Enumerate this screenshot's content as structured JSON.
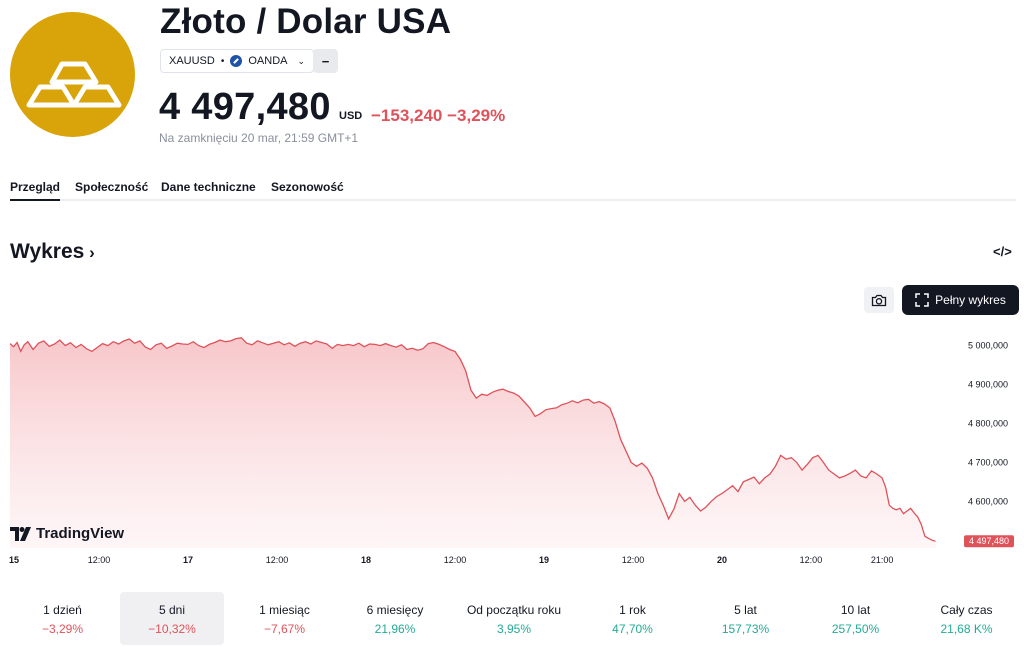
{
  "header": {
    "logo_icon": "gold-bars-icon",
    "title": "Złoto / Dolar USA",
    "symbol": "XAUUSD",
    "dot": "•",
    "exchange": "OANDA",
    "exchange_icon": "oanda-icon",
    "minus_label": "−",
    "price": "4 497,480",
    "currency": "USD",
    "change": "−153,240 −3,29%",
    "closed_text": "Na zamknięciu 20 mar, 21:59 GMT+1",
    "colors": {
      "logo_bg": "#d9a30a",
      "negative": "#e0525a",
      "positive": "#22ab94"
    }
  },
  "tabs": [
    {
      "label": "Przegląd",
      "active": true
    },
    {
      "label": "Społeczność",
      "active": false
    },
    {
      "label": "Dane techniczne",
      "active": false
    },
    {
      "label": "Sezonowość",
      "active": false
    }
  ],
  "chart_section": {
    "title": "Wykres",
    "title_icon": "chevron-right-icon",
    "embed_icon": "code-icon",
    "embed_label": "</>",
    "camera_icon": "camera-icon",
    "fullscreen_icon": "fullscreen-icon",
    "fullscreen_label": "Pełny wykres",
    "watermark": "TradingView"
  },
  "chart_data": {
    "type": "area",
    "title": "",
    "xlabel": "",
    "ylabel": "",
    "x_ticks": [
      {
        "label": "15",
        "x": 0,
        "day": true
      },
      {
        "label": "12:00",
        "x": 0.5,
        "day": false
      },
      {
        "label": "17",
        "x": 1.0,
        "day": true
      },
      {
        "label": "12:00",
        "x": 1.5,
        "day": false
      },
      {
        "label": "18",
        "x": 2.0,
        "day": true
      },
      {
        "label": "12:00",
        "x": 2.5,
        "day": false
      },
      {
        "label": "19",
        "x": 3.0,
        "day": true
      },
      {
        "label": "12:00",
        "x": 3.5,
        "day": false
      },
      {
        "label": "20",
        "x": 4.0,
        "day": true
      },
      {
        "label": "12:00",
        "x": 4.5,
        "day": false
      },
      {
        "label": "21:00",
        "x": 4.9,
        "day": false
      }
    ],
    "y_ticks": [
      {
        "label": "5 000,000",
        "value": 5000
      },
      {
        "label": "4 900,000",
        "value": 4900
      },
      {
        "label": "4 800,000",
        "value": 4800
      },
      {
        "label": "4 700,000",
        "value": 4700
      },
      {
        "label": "4 600,000",
        "value": 4600
      }
    ],
    "ylim": [
      4480,
      5040
    ],
    "xlim": [
      0,
      5.27
    ],
    "series": [
      {
        "values": [
          [
            0.0,
            5005
          ],
          [
            0.02,
            4997
          ],
          [
            0.04,
            5008
          ],
          [
            0.06,
            4985
          ],
          [
            0.08,
            5002
          ],
          [
            0.1,
            5010
          ],
          [
            0.13,
            4990
          ],
          [
            0.16,
            5006
          ],
          [
            0.19,
            5012
          ],
          [
            0.22,
            4998
          ],
          [
            0.25,
            5004
          ],
          [
            0.28,
            5014
          ],
          [
            0.31,
            5000
          ],
          [
            0.34,
            5007
          ],
          [
            0.37,
            4995
          ],
          [
            0.4,
            5003
          ],
          [
            0.43,
            4992
          ],
          [
            0.46,
            4985
          ],
          [
            0.49,
            4995
          ],
          [
            0.52,
            5005
          ],
          [
            0.55,
            5000
          ],
          [
            0.58,
            5010
          ],
          [
            0.61,
            5004
          ],
          [
            0.64,
            5012
          ],
          [
            0.67,
            5017
          ],
          [
            0.7,
            5006
          ],
          [
            0.73,
            5012
          ],
          [
            0.76,
            4996
          ],
          [
            0.79,
            4990
          ],
          [
            0.82,
            5002
          ],
          [
            0.85,
            5006
          ],
          [
            0.88,
            4993
          ],
          [
            0.91,
            4999
          ],
          [
            0.94,
            5006
          ],
          [
            0.97,
            5004
          ],
          [
            1.0,
            5003
          ],
          [
            1.03,
            5010
          ],
          [
            1.06,
            5000
          ],
          [
            1.09,
            4995
          ],
          [
            1.12,
            5003
          ],
          [
            1.15,
            5008
          ],
          [
            1.18,
            5014
          ],
          [
            1.21,
            5010
          ],
          [
            1.24,
            5012
          ],
          [
            1.27,
            5018
          ],
          [
            1.3,
            5020
          ],
          [
            1.33,
            5006
          ],
          [
            1.36,
            5002
          ],
          [
            1.39,
            5012
          ],
          [
            1.42,
            5007
          ],
          [
            1.45,
            5002
          ],
          [
            1.48,
            5006
          ],
          [
            1.51,
            5010
          ],
          [
            1.54,
            5002
          ],
          [
            1.57,
            5007
          ],
          [
            1.6,
            4998
          ],
          [
            1.63,
            5006
          ],
          [
            1.66,
            5010
          ],
          [
            1.69,
            5004
          ],
          [
            1.72,
            5012
          ],
          [
            1.75,
            5008
          ],
          [
            1.78,
            5004
          ],
          [
            1.81,
            4993
          ],
          [
            1.84,
            5003
          ],
          [
            1.87,
            5000
          ],
          [
            1.9,
            5003
          ],
          [
            1.93,
            5000
          ],
          [
            1.96,
            5006
          ],
          [
            1.99,
            4997
          ],
          [
            2.02,
            5004
          ],
          [
            2.05,
            5003
          ],
          [
            2.08,
            5000
          ],
          [
            2.11,
            5005
          ],
          [
            2.14,
            5000
          ],
          [
            2.17,
            4996
          ],
          [
            2.2,
            5002
          ],
          [
            2.23,
            4990
          ],
          [
            2.26,
            4993
          ],
          [
            2.29,
            4988
          ],
          [
            2.32,
            4992
          ],
          [
            2.35,
            5005
          ],
          [
            2.38,
            5008
          ],
          [
            2.41,
            5003
          ],
          [
            2.44,
            4997
          ],
          [
            2.47,
            4990
          ],
          [
            2.5,
            4985
          ],
          [
            2.53,
            4965
          ],
          [
            2.56,
            4935
          ],
          [
            2.59,
            4885
          ],
          [
            2.62,
            4865
          ],
          [
            2.65,
            4875
          ],
          [
            2.68,
            4872
          ],
          [
            2.71,
            4880
          ],
          [
            2.74,
            4885
          ],
          [
            2.77,
            4888
          ],
          [
            2.8,
            4882
          ],
          [
            2.83,
            4878
          ],
          [
            2.86,
            4870
          ],
          [
            2.89,
            4855
          ],
          [
            2.92,
            4840
          ],
          [
            2.95,
            4818
          ],
          [
            2.98,
            4825
          ],
          [
            3.01,
            4835
          ],
          [
            3.04,
            4838
          ],
          [
            3.07,
            4840
          ],
          [
            3.1,
            4848
          ],
          [
            3.13,
            4852
          ],
          [
            3.16,
            4858
          ],
          [
            3.19,
            4853
          ],
          [
            3.22,
            4860
          ],
          [
            3.25,
            4862
          ],
          [
            3.28,
            4852
          ],
          [
            3.31,
            4856
          ],
          [
            3.34,
            4850
          ],
          [
            3.37,
            4840
          ],
          [
            3.4,
            4805
          ],
          [
            3.43,
            4760
          ],
          [
            3.46,
            4730
          ],
          [
            3.49,
            4700
          ],
          [
            3.52,
            4690
          ],
          [
            3.55,
            4698
          ],
          [
            3.58,
            4685
          ],
          [
            3.61,
            4660
          ],
          [
            3.64,
            4620
          ],
          [
            3.67,
            4590
          ],
          [
            3.7,
            4555
          ],
          [
            3.73,
            4580
          ],
          [
            3.76,
            4620
          ],
          [
            3.79,
            4600
          ],
          [
            3.82,
            4610
          ],
          [
            3.85,
            4590
          ],
          [
            3.88,
            4575
          ],
          [
            3.91,
            4585
          ],
          [
            3.94,
            4600
          ],
          [
            3.97,
            4612
          ],
          [
            4.0,
            4620
          ],
          [
            4.03,
            4630
          ],
          [
            4.06,
            4640
          ],
          [
            4.09,
            4625
          ],
          [
            4.12,
            4650
          ],
          [
            4.15,
            4656
          ],
          [
            4.18,
            4662
          ],
          [
            4.21,
            4645
          ],
          [
            4.24,
            4660
          ],
          [
            4.27,
            4670
          ],
          [
            4.3,
            4690
          ],
          [
            4.33,
            4718
          ],
          [
            4.36,
            4708
          ],
          [
            4.39,
            4712
          ],
          [
            4.42,
            4700
          ],
          [
            4.45,
            4680
          ],
          [
            4.48,
            4695
          ],
          [
            4.51,
            4712
          ],
          [
            4.54,
            4718
          ],
          [
            4.57,
            4700
          ],
          [
            4.6,
            4680
          ],
          [
            4.63,
            4670
          ],
          [
            4.66,
            4660
          ],
          [
            4.69,
            4665
          ],
          [
            4.72,
            4672
          ],
          [
            4.75,
            4680
          ],
          [
            4.78,
            4665
          ],
          [
            4.81,
            4660
          ],
          [
            4.84,
            4678
          ],
          [
            4.87,
            4670
          ],
          [
            4.9,
            4660
          ],
          [
            4.92,
            4635
          ],
          [
            4.94,
            4590
          ],
          [
            4.96,
            4582
          ],
          [
            4.98,
            4578
          ],
          [
            5.0,
            4582
          ],
          [
            5.02,
            4568
          ],
          [
            5.04,
            4575
          ],
          [
            5.06,
            4582
          ],
          [
            5.08,
            4570
          ],
          [
            5.1,
            4560
          ],
          [
            5.12,
            4540
          ],
          [
            5.14,
            4510
          ],
          [
            5.16,
            4505
          ],
          [
            5.18,
            4500
          ],
          [
            5.2,
            4497.48
          ]
        ]
      }
    ],
    "last_value_label": "4 497,480",
    "line_color": "#e0525a",
    "fill_color": "#f7c4c7",
    "grid": false
  },
  "periods": [
    {
      "label": "1 dzień",
      "value": "−3,29%",
      "positive": false,
      "active": false
    },
    {
      "label": "5 dni",
      "value": "−10,32%",
      "positive": false,
      "active": true
    },
    {
      "label": "1 miesiąc",
      "value": "−7,67%",
      "positive": false,
      "active": false
    },
    {
      "label": "6 miesięcy",
      "value": "21,96%",
      "positive": true,
      "active": false
    },
    {
      "label": "Od początku roku",
      "value": "3,95%",
      "positive": true,
      "active": false
    },
    {
      "label": "1 rok",
      "value": "47,70%",
      "positive": true,
      "active": false
    },
    {
      "label": "5 lat",
      "value": "157,73%",
      "positive": true,
      "active": false
    },
    {
      "label": "10 lat",
      "value": "257,50%",
      "positive": true,
      "active": false
    },
    {
      "label": "Cały czas",
      "value": "21,68 K%",
      "positive": true,
      "active": false
    }
  ]
}
